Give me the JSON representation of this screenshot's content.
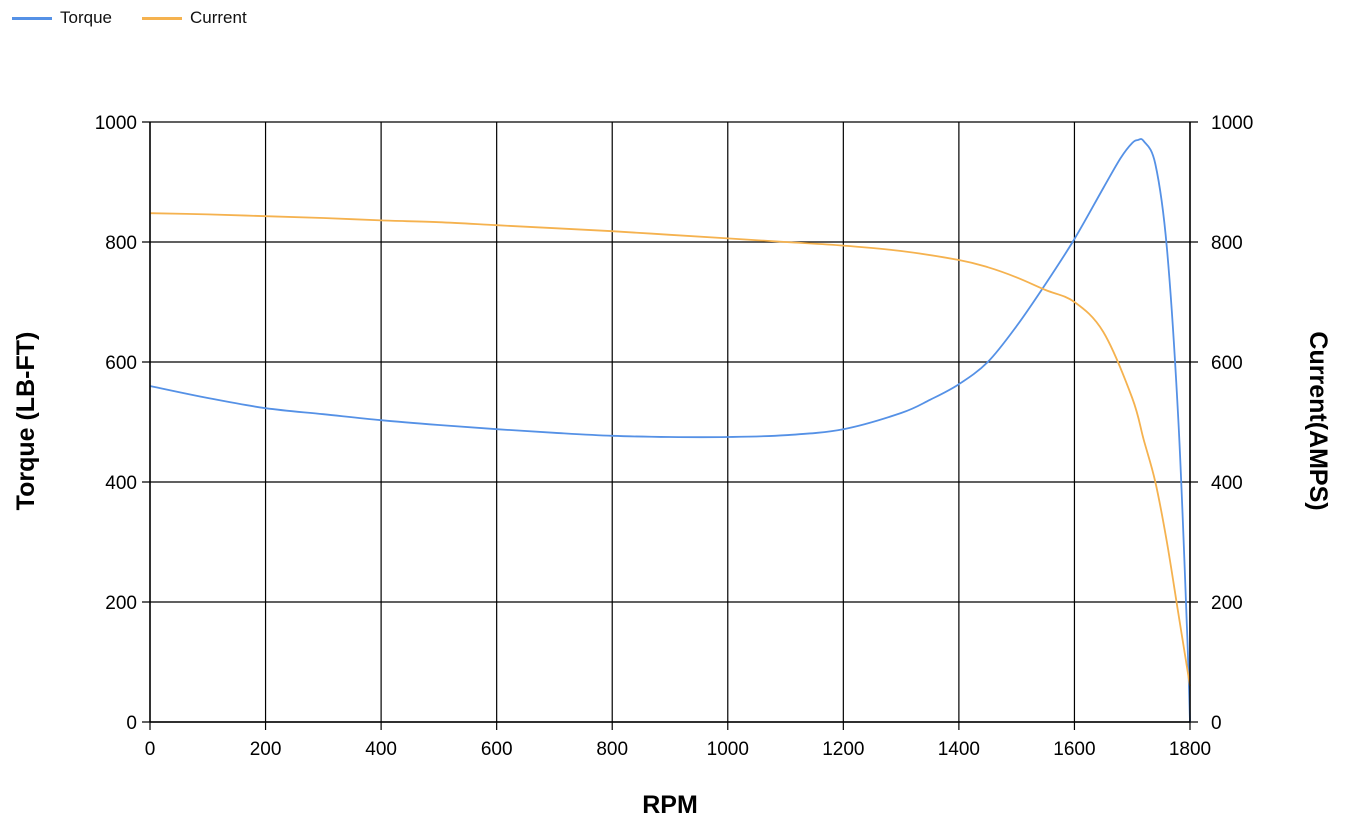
{
  "chart_data": {
    "type": "line",
    "title": "",
    "xlabel": "RPM",
    "ylabel": "Torque (LB-FT)",
    "y2label": "Current(AMPS)",
    "xlim": [
      0,
      1800
    ],
    "ylim": [
      0,
      1000
    ],
    "y2lim": [
      0,
      1000
    ],
    "x_ticks": [
      0,
      200,
      400,
      600,
      800,
      1000,
      1200,
      1400,
      1600,
      1800
    ],
    "y_ticks": [
      0,
      200,
      400,
      600,
      800,
      1000
    ],
    "y2_ticks": [
      0,
      200,
      400,
      600,
      800,
      1000
    ],
    "grid": true,
    "legend_position": "top-left",
    "series": [
      {
        "name": "Torque",
        "color": "#5591e6",
        "axis": "left",
        "x": [
          0,
          100,
          200,
          300,
          400,
          500,
          600,
          700,
          800,
          900,
          1000,
          1100,
          1200,
          1300,
          1350,
          1400,
          1450,
          1500,
          1550,
          1600,
          1650,
          1680,
          1700,
          1710,
          1720,
          1740,
          1760,
          1780,
          1795,
          1800
        ],
        "y": [
          560,
          540,
          523,
          513,
          503,
          495,
          488,
          482,
          477,
          475,
          475,
          478,
          488,
          515,
          537,
          563,
          600,
          660,
          730,
          805,
          890,
          940,
          965,
          970,
          968,
          930,
          790,
          500,
          150,
          0
        ]
      },
      {
        "name": "Current",
        "color": "#f5b24f",
        "axis": "right",
        "x": [
          0,
          100,
          200,
          300,
          400,
          500,
          600,
          700,
          800,
          900,
          1000,
          1100,
          1200,
          1300,
          1400,
          1450,
          1500,
          1550,
          1600,
          1650,
          1700,
          1720,
          1740,
          1760,
          1780,
          1800
        ],
        "y": [
          848,
          846,
          843,
          840,
          836,
          833,
          828,
          823,
          818,
          812,
          806,
          800,
          794,
          785,
          770,
          758,
          741,
          720,
          700,
          650,
          540,
          470,
          400,
          300,
          180,
          60
        ]
      }
    ]
  }
}
